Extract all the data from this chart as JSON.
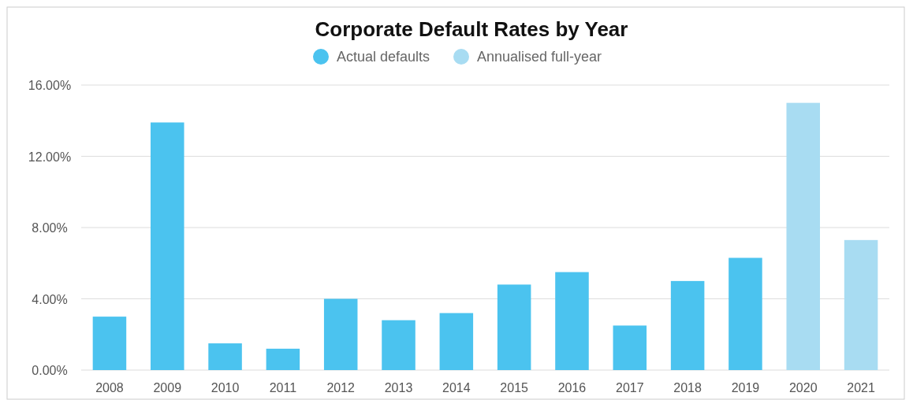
{
  "chart_data": {
    "type": "bar",
    "title": "Corporate Default Rates by Year",
    "stacked": true,
    "categories": [
      "2008",
      "2009",
      "2010",
      "2011",
      "2012",
      "2013",
      "2014",
      "2015",
      "2016",
      "2017",
      "2018",
      "2019",
      "2020",
      "2021"
    ],
    "series": [
      {
        "name": "Actual defaults",
        "color": "#4bc3ef",
        "values": [
          3.0,
          13.9,
          1.5,
          1.2,
          4.0,
          2.8,
          3.2,
          4.8,
          5.5,
          2.5,
          5.0,
          6.3,
          null,
          null
        ]
      },
      {
        "name": "Annualised full-year",
        "color": "#a8dcf2",
        "values": [
          null,
          null,
          null,
          null,
          null,
          null,
          null,
          null,
          null,
          null,
          null,
          null,
          15.0,
          7.3
        ]
      }
    ],
    "ylim": [
      0,
      16
    ],
    "yticks": [
      {
        "value": 0,
        "label": "0.00%"
      },
      {
        "value": 4,
        "label": "4.00%"
      },
      {
        "value": 8,
        "label": "8.00%"
      },
      {
        "value": 12,
        "label": "12.00%"
      },
      {
        "value": 16,
        "label": "16.00%"
      }
    ],
    "grid": "y",
    "legend": "top"
  }
}
